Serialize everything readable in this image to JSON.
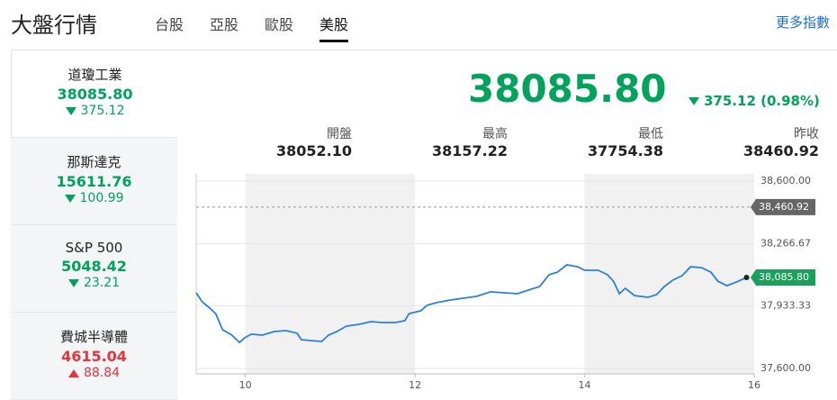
{
  "header": {
    "title": "大盤行情",
    "tabs": [
      "台股",
      "亞股",
      "歐股",
      "美股"
    ],
    "active_tab": 3,
    "more_link": "更多指數"
  },
  "sidebar": [
    {
      "name": "道瓊工業",
      "value": "38085.80",
      "change": "375.12",
      "trend": "down"
    },
    {
      "name": "那斯達克",
      "value": "15611.76",
      "change": "100.99",
      "trend": "down"
    },
    {
      "name": "S&P 500",
      "value": "5048.42",
      "change": "23.21",
      "trend": "down"
    },
    {
      "name": "費城半導體",
      "value": "4615.04",
      "change": "88.84",
      "trend": "up"
    }
  ],
  "selected_item": 0,
  "quote": {
    "price": "38085.80",
    "change": "375.12 (0.98%)",
    "trend": "down",
    "stats": [
      {
        "label": "開盤",
        "value": "38052.10"
      },
      {
        "label": "最高",
        "value": "38157.22"
      },
      {
        "label": "最低",
        "value": "37754.38"
      },
      {
        "label": "昨收",
        "value": "38460.92"
      }
    ]
  },
  "chart_data": {
    "type": "line",
    "color": "#2b7fe0",
    "x": [
      9.42,
      9.49,
      9.58,
      9.65,
      9.73,
      9.84,
      9.93,
      9.99,
      10.07,
      10.2,
      10.34,
      10.48,
      10.61,
      10.66,
      10.76,
      10.9,
      10.98,
      11.08,
      11.19,
      11.35,
      11.48,
      11.61,
      11.77,
      11.88,
      11.93,
      12.07,
      12.14,
      12.25,
      12.41,
      12.57,
      12.73,
      12.89,
      13.05,
      13.21,
      13.37,
      13.47,
      13.58,
      13.68,
      13.79,
      13.92,
      14.0,
      14.16,
      14.27,
      14.34,
      14.41,
      14.48,
      14.59,
      14.75,
      14.85,
      14.94,
      15.04,
      15.15,
      15.25,
      15.38,
      15.49,
      15.57,
      15.68,
      15.79,
      15.91
    ],
    "values": [
      38004,
      37956,
      37922,
      37893,
      37807,
      37778,
      37739,
      37763,
      37783,
      37778,
      37797,
      37802,
      37788,
      37754,
      37749,
      37744,
      37778,
      37797,
      37826,
      37836,
      37850,
      37845,
      37845,
      37855,
      37893,
      37908,
      37937,
      37951,
      37965,
      37975,
      37985,
      38009,
      38004,
      37999,
      38023,
      38037,
      38100,
      38114,
      38153,
      38143,
      38124,
      38124,
      38100,
      38066,
      37999,
      38028,
      37989,
      37980,
      37994,
      38037,
      38071,
      38095,
      38143,
      38138,
      38114,
      38066,
      38042,
      38061,
      38085.8
    ],
    "xlim": [
      9.42,
      16
    ],
    "ylim": [
      37600,
      38600
    ],
    "xticks": [
      10,
      12,
      14,
      16
    ],
    "yticks": [
      {
        "value": 37600,
        "label": "37,600.00"
      },
      {
        "value": 37933.33,
        "label": "37,933.33"
      },
      {
        "value": 38266.67,
        "label": "38,266.67"
      },
      {
        "value": 38600,
        "label": "38,600.00"
      }
    ],
    "grid": true,
    "reference_line": {
      "value": 38460.92,
      "label": "38,460.92"
    },
    "last_price": {
      "value": 38085.8,
      "label": "38,085.80"
    }
  }
}
